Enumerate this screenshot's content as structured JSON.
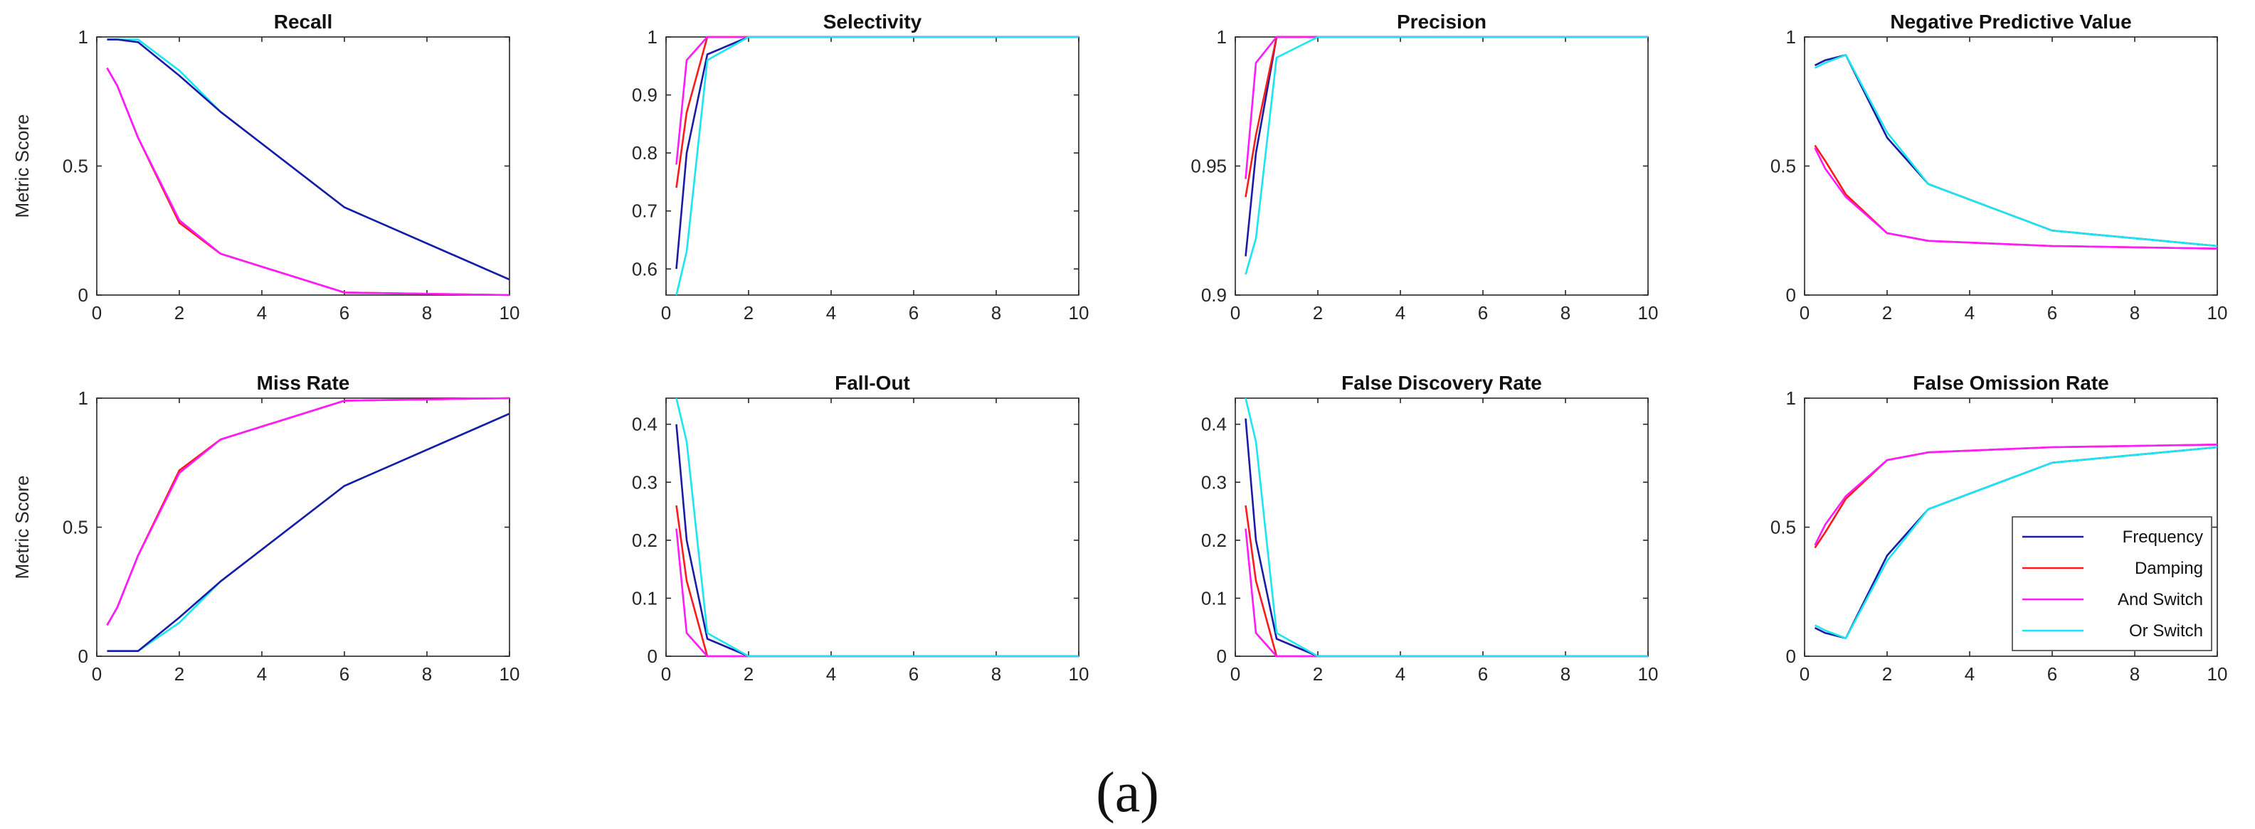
{
  "figure_label": "(a)",
  "colors": {
    "Frequency": "#1a1aa6",
    "Damping": "#ff1a1a",
    "And Switch": "#ff1aff",
    "Or Switch": "#1ae6f0"
  },
  "legend": [
    "Frequency",
    "Damping",
    "And Switch",
    "Or Switch"
  ],
  "chart_data": [
    {
      "type": "line",
      "title": "Recall",
      "ylabel": "Metric Score",
      "xlabel": "",
      "xlim": [
        0,
        10
      ],
      "ylim": [
        0,
        1
      ],
      "xticks": [
        0,
        2,
        4,
        6,
        8,
        10
      ],
      "yticks": [
        0,
        0.5,
        1
      ],
      "ytick_labels": [
        "0",
        "0.5",
        "1"
      ],
      "series": [
        {
          "name": "Or Switch",
          "x": [
            0.25,
            0.5,
            1,
            2,
            3,
            6,
            10
          ],
          "y": [
            0.99,
            0.99,
            0.99,
            0.87,
            0.71,
            0.34,
            0.06
          ]
        },
        {
          "name": "Frequency",
          "x": [
            0.25,
            0.5,
            1,
            2,
            3,
            6,
            10
          ],
          "y": [
            0.99,
            0.99,
            0.98,
            0.85,
            0.71,
            0.34,
            0.06
          ]
        },
        {
          "name": "Damping",
          "x": [
            0.25,
            0.5,
            1,
            2,
            3,
            6,
            10
          ],
          "y": [
            0.88,
            0.81,
            0.61,
            0.28,
            0.16,
            0.01,
            0.0
          ]
        },
        {
          "name": "And Switch",
          "x": [
            0.25,
            0.5,
            1,
            2,
            3,
            6,
            10
          ],
          "y": [
            0.88,
            0.81,
            0.61,
            0.29,
            0.16,
            0.01,
            0.0
          ]
        }
      ]
    },
    {
      "type": "line",
      "title": "Selectivity",
      "ylabel": "",
      "xlabel": "",
      "xlim": [
        0,
        10
      ],
      "ylim": [
        0.555,
        1
      ],
      "xticks": [
        0,
        2,
        4,
        6,
        8,
        10
      ],
      "yticks": [
        0.6,
        0.7,
        0.8,
        0.9,
        1
      ],
      "ytick_labels": [
        "0.6",
        "0.7",
        "0.8",
        "0.9",
        "1"
      ],
      "series": [
        {
          "name": "Frequency",
          "x": [
            0.25,
            0.5,
            1,
            2,
            3,
            6,
            10
          ],
          "y": [
            0.6,
            0.8,
            0.97,
            1,
            1,
            1,
            1
          ]
        },
        {
          "name": "Damping",
          "x": [
            0.25,
            0.5,
            1,
            2,
            3,
            6,
            10
          ],
          "y": [
            0.74,
            0.87,
            1,
            1,
            1,
            1,
            1
          ]
        },
        {
          "name": "And Switch",
          "x": [
            0.25,
            0.5,
            1,
            2,
            3,
            6,
            10
          ],
          "y": [
            0.78,
            0.96,
            1,
            1,
            1,
            1,
            1
          ]
        },
        {
          "name": "Or Switch",
          "x": [
            0.25,
            0.5,
            1,
            2,
            3,
            6,
            10
          ],
          "y": [
            0.555,
            0.63,
            0.96,
            1,
            1,
            1,
            1
          ]
        }
      ]
    },
    {
      "type": "line",
      "title": "Precision",
      "ylabel": "",
      "xlabel": "",
      "xlim": [
        0,
        10
      ],
      "ylim": [
        0.9,
        1
      ],
      "xticks": [
        0,
        2,
        4,
        6,
        8,
        10
      ],
      "yticks": [
        0.9,
        0.95,
        1
      ],
      "ytick_labels": [
        "0.9",
        "0.95",
        "1"
      ],
      "series": [
        {
          "name": "Frequency",
          "x": [
            0.25,
            0.5,
            1,
            2,
            3,
            6,
            10
          ],
          "y": [
            0.915,
            0.955,
            1,
            1,
            1,
            1,
            1
          ]
        },
        {
          "name": "Damping",
          "x": [
            0.25,
            0.5,
            1,
            2,
            3,
            6,
            10
          ],
          "y": [
            0.938,
            0.962,
            1,
            1,
            1,
            1,
            1
          ]
        },
        {
          "name": "And Switch",
          "x": [
            0.25,
            0.5,
            1,
            2,
            3,
            6,
            10
          ],
          "y": [
            0.945,
            0.99,
            1,
            1,
            1,
            1,
            1
          ]
        },
        {
          "name": "Or Switch",
          "x": [
            0.25,
            0.5,
            1,
            2,
            3,
            6,
            10
          ],
          "y": [
            0.908,
            0.922,
            0.992,
            1,
            1,
            1,
            1
          ]
        }
      ]
    },
    {
      "type": "line",
      "title": "Negative Predictive Value",
      "ylabel": "",
      "xlabel": "",
      "xlim": [
        0,
        10
      ],
      "ylim": [
        0,
        1
      ],
      "xticks": [
        0,
        2,
        4,
        6,
        8,
        10
      ],
      "yticks": [
        0,
        0.5,
        1
      ],
      "ytick_labels": [
        "0",
        "0.5",
        "1"
      ],
      "series": [
        {
          "name": "Frequency",
          "x": [
            0.25,
            0.5,
            1,
            2,
            3,
            6,
            10
          ],
          "y": [
            0.89,
            0.91,
            0.93,
            0.61,
            0.43,
            0.25,
            0.19
          ]
        },
        {
          "name": "Or Switch",
          "x": [
            0.25,
            0.5,
            1,
            2,
            3,
            6,
            10
          ],
          "y": [
            0.88,
            0.9,
            0.93,
            0.63,
            0.43,
            0.25,
            0.19
          ]
        },
        {
          "name": "Damping",
          "x": [
            0.25,
            0.5,
            1,
            2,
            3,
            6,
            10
          ],
          "y": [
            0.58,
            0.52,
            0.39,
            0.24,
            0.21,
            0.19,
            0.18
          ]
        },
        {
          "name": "And Switch",
          "x": [
            0.25,
            0.5,
            1,
            2,
            3,
            6,
            10
          ],
          "y": [
            0.57,
            0.49,
            0.38,
            0.24,
            0.21,
            0.19,
            0.18
          ]
        }
      ]
    },
    {
      "type": "line",
      "title": "Miss Rate",
      "ylabel": "Metric Score",
      "xlabel": "",
      "xlim": [
        0,
        10
      ],
      "ylim": [
        0,
        1
      ],
      "xticks": [
        0,
        2,
        4,
        6,
        8,
        10
      ],
      "yticks": [
        0,
        0.5,
        1
      ],
      "ytick_labels": [
        "0",
        "0.5",
        "1"
      ],
      "series": [
        {
          "name": "Or Switch",
          "x": [
            0.25,
            0.5,
            1,
            2,
            3,
            6,
            10
          ],
          "y": [
            0.02,
            0.02,
            0.02,
            0.13,
            0.29,
            0.66,
            0.94
          ]
        },
        {
          "name": "Frequency",
          "x": [
            0.25,
            0.5,
            1,
            2,
            3,
            6,
            10
          ],
          "y": [
            0.02,
            0.02,
            0.02,
            0.15,
            0.29,
            0.66,
            0.94
          ]
        },
        {
          "name": "Damping",
          "x": [
            0.25,
            0.5,
            1,
            2,
            3,
            6,
            10
          ],
          "y": [
            0.12,
            0.19,
            0.39,
            0.72,
            0.84,
            0.99,
            1.0
          ]
        },
        {
          "name": "And Switch",
          "x": [
            0.25,
            0.5,
            1,
            2,
            3,
            6,
            10
          ],
          "y": [
            0.12,
            0.19,
            0.39,
            0.71,
            0.84,
            0.99,
            1.0
          ]
        }
      ]
    },
    {
      "type": "line",
      "title": "Fall-Out",
      "ylabel": "",
      "xlabel": "",
      "xlim": [
        0,
        10
      ],
      "ylim": [
        0,
        0.445
      ],
      "xticks": [
        0,
        2,
        4,
        6,
        8,
        10
      ],
      "yticks": [
        0,
        0.1,
        0.2,
        0.3,
        0.4
      ],
      "ytick_labels": [
        "0",
        "0.1",
        "0.2",
        "0.3",
        "0.4"
      ],
      "series": [
        {
          "name": "Frequency",
          "x": [
            0.25,
            0.5,
            1,
            2,
            3,
            6,
            10
          ],
          "y": [
            0.4,
            0.2,
            0.03,
            0,
            0,
            0,
            0
          ]
        },
        {
          "name": "Damping",
          "x": [
            0.25,
            0.5,
            1,
            2,
            3,
            6,
            10
          ],
          "y": [
            0.26,
            0.13,
            0.0,
            0,
            0,
            0,
            0
          ]
        },
        {
          "name": "And Switch",
          "x": [
            0.25,
            0.5,
            1,
            2,
            3,
            6,
            10
          ],
          "y": [
            0.22,
            0.04,
            0.0,
            0,
            0,
            0,
            0
          ]
        },
        {
          "name": "Or Switch",
          "x": [
            0.25,
            0.5,
            1,
            2,
            3,
            6,
            10
          ],
          "y": [
            0.445,
            0.37,
            0.04,
            0,
            0,
            0,
            0
          ]
        }
      ]
    },
    {
      "type": "line",
      "title": "False Discovery Rate",
      "ylabel": "",
      "xlabel": "",
      "xlim": [
        0,
        10
      ],
      "ylim": [
        0,
        0.445
      ],
      "xticks": [
        0,
        2,
        4,
        6,
        8,
        10
      ],
      "yticks": [
        0,
        0.1,
        0.2,
        0.3,
        0.4
      ],
      "ytick_labels": [
        "0",
        "0.1",
        "0.2",
        "0.3",
        "0.4"
      ],
      "series": [
        {
          "name": "Frequency",
          "x": [
            0.25,
            0.5,
            1,
            2,
            3,
            6,
            10
          ],
          "y": [
            0.41,
            0.2,
            0.03,
            0,
            0,
            0,
            0
          ]
        },
        {
          "name": "Damping",
          "x": [
            0.25,
            0.5,
            1,
            2,
            3,
            6,
            10
          ],
          "y": [
            0.26,
            0.13,
            0.0,
            0,
            0,
            0,
            0
          ]
        },
        {
          "name": "And Switch",
          "x": [
            0.25,
            0.5,
            1,
            2,
            3,
            6,
            10
          ],
          "y": [
            0.22,
            0.04,
            0.0,
            0,
            0,
            0,
            0
          ]
        },
        {
          "name": "Or Switch",
          "x": [
            0.25,
            0.5,
            1,
            2,
            3,
            6,
            10
          ],
          "y": [
            0.445,
            0.37,
            0.04,
            0,
            0,
            0,
            0
          ]
        }
      ]
    },
    {
      "type": "line",
      "title": "False Omission Rate",
      "ylabel": "",
      "xlabel": "",
      "xlim": [
        0,
        10
      ],
      "ylim": [
        0,
        1
      ],
      "xticks": [
        0,
        2,
        4,
        6,
        8,
        10
      ],
      "yticks": [
        0,
        0.5,
        1
      ],
      "ytick_labels": [
        "0",
        "0.5",
        "1"
      ],
      "legend": "bottom-right",
      "series": [
        {
          "name": "Frequency",
          "x": [
            0.25,
            0.5,
            1,
            2,
            3,
            6,
            10
          ],
          "y": [
            0.11,
            0.09,
            0.07,
            0.39,
            0.57,
            0.75,
            0.81
          ]
        },
        {
          "name": "Or Switch",
          "x": [
            0.25,
            0.5,
            1,
            2,
            3,
            6,
            10
          ],
          "y": [
            0.12,
            0.1,
            0.07,
            0.37,
            0.57,
            0.75,
            0.81
          ]
        },
        {
          "name": "Damping",
          "x": [
            0.25,
            0.5,
            1,
            2,
            3,
            6,
            10
          ],
          "y": [
            0.42,
            0.48,
            0.61,
            0.76,
            0.79,
            0.81,
            0.82
          ]
        },
        {
          "name": "And Switch",
          "x": [
            0.25,
            0.5,
            1,
            2,
            3,
            6,
            10
          ],
          "y": [
            0.43,
            0.51,
            0.62,
            0.76,
            0.79,
            0.81,
            0.82
          ]
        }
      ]
    }
  ]
}
